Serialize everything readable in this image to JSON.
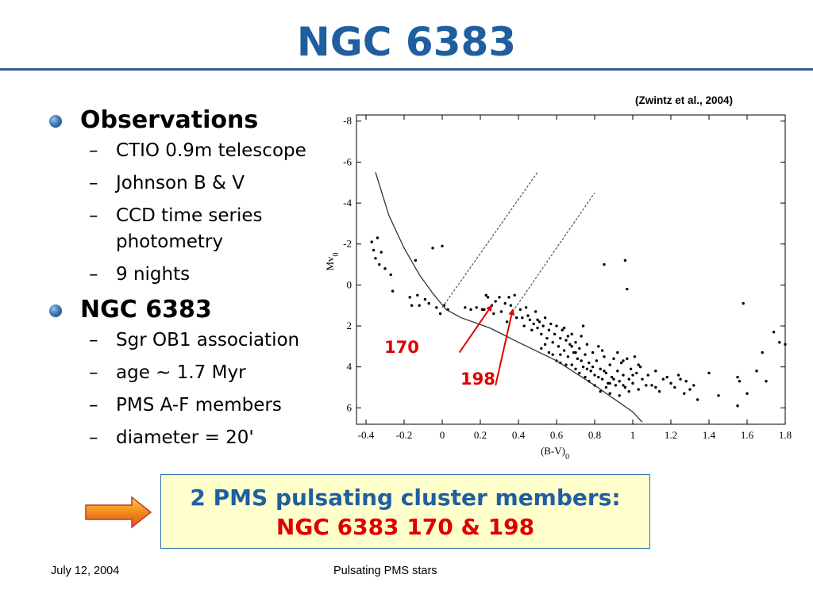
{
  "slide": {
    "title": "NGC 6383",
    "citation": "(Zwintz et al., 2004)",
    "bullets": [
      {
        "label": "Observations",
        "sub": [
          "CTIO 0.9m telescope",
          "Johnson B & V",
          "CCD time series photometry",
          "9 nights"
        ]
      },
      {
        "label": "NGC 6383",
        "sub": [
          "Sgr OB1 association",
          "age ~ 1.7 Myr",
          "PMS A-F members",
          "diameter = 20'"
        ]
      }
    ],
    "callout": {
      "line1": "2 PMS pulsating cluster members:",
      "line2": "NGC 6383 170 & 198"
    },
    "footer": {
      "date": "July 12, 2004",
      "topic": "Pulsating PMS stars"
    },
    "colors": {
      "title": "#1f5fa0",
      "highlight": "#e00000",
      "callout_bg": "#ffffcc",
      "arrow": "#f08020"
    },
    "icons": {
      "bullet": "sphere-bullet-icon",
      "arrow": "right-arrow-icon"
    }
  },
  "chart_data": {
    "type": "scatter",
    "xlabel": "(B-V)",
    "xlabel_sub": "0",
    "ylabel": "Mv",
    "ylabel_sub": "0",
    "xlim": [
      -0.45,
      1.8
    ],
    "ylim": [
      6.8,
      -8.3
    ],
    "y_inverted": true,
    "xticks": [
      -0.4,
      -0.2,
      0,
      0.2,
      0.4,
      0.6,
      0.8,
      1,
      1.2,
      1.4,
      1.6,
      1.8
    ],
    "xtick_labels": [
      "-0.4",
      "-0.2",
      "0",
      "0.2",
      "0.4",
      "0.6",
      "0.8",
      "1",
      "1.2",
      "1.4",
      "1.6",
      "1.8"
    ],
    "yticks": [
      -8,
      -6,
      -4,
      -2,
      0,
      2,
      4,
      6
    ],
    "ytick_labels": [
      "-8",
      "-6",
      "-4",
      "-2",
      "0",
      "2",
      "4",
      "6"
    ],
    "grid": false,
    "series": [
      {
        "kind": "points",
        "points": [
          [
            -0.37,
            -2.1
          ],
          [
            -0.34,
            -2.3
          ],
          [
            -0.36,
            -1.7
          ],
          [
            -0.32,
            -1.6
          ],
          [
            -0.35,
            -1.3
          ],
          [
            -0.33,
            -1.0
          ],
          [
            -0.3,
            -0.8
          ],
          [
            -0.27,
            -0.5
          ],
          [
            0,
            -1.9
          ],
          [
            -0.05,
            -1.8
          ],
          [
            -0.14,
            -1.2
          ],
          [
            -0.26,
            0.3
          ],
          [
            -0.17,
            0.6
          ],
          [
            -0.13,
            0.5
          ],
          [
            -0.09,
            0.7
          ],
          [
            -0.16,
            1.0
          ],
          [
            -0.12,
            1.0
          ],
          [
            -0.07,
            0.9
          ],
          [
            -0.03,
            1.1
          ],
          [
            0.01,
            1.0
          ],
          [
            0.03,
            1.2
          ],
          [
            -0.01,
            1.4
          ],
          [
            0.12,
            1.1
          ],
          [
            0.15,
            1.2
          ],
          [
            0.18,
            1.1
          ],
          [
            0.21,
            1.2
          ],
          [
            0.23,
            0.5
          ],
          [
            0.24,
            0.6
          ],
          [
            0.26,
            1.0
          ],
          [
            0.28,
            0.8
          ],
          [
            0.3,
            0.6
          ],
          [
            0.31,
            1.3
          ],
          [
            0.33,
            0.9
          ],
          [
            0.35,
            0.6
          ],
          [
            0.36,
            1.0
          ],
          [
            0.37,
            1.4
          ],
          [
            0.38,
            0.5
          ],
          [
            0.39,
            1.6
          ],
          [
            0.22,
            1.2
          ],
          [
            0.27,
            1.4
          ],
          [
            0.34,
            1.8
          ],
          [
            0.41,
            1.2
          ],
          [
            0.42,
            1.6
          ],
          [
            0.43,
            2.0
          ],
          [
            0.44,
            1.1
          ],
          [
            0.45,
            1.5
          ],
          [
            0.46,
            1.7
          ],
          [
            0.47,
            2.2
          ],
          [
            0.48,
            1.9
          ],
          [
            0.49,
            1.3
          ],
          [
            0.5,
            2.1
          ],
          [
            0.51,
            1.8
          ],
          [
            0.52,
            2.4
          ],
          [
            0.53,
            2.0
          ],
          [
            0.54,
            1.6
          ],
          [
            0.55,
            2.6
          ],
          [
            0.56,
            2.2
          ],
          [
            0.57,
            1.9
          ],
          [
            0.58,
            2.8
          ],
          [
            0.59,
            2.4
          ],
          [
            0.6,
            2.0
          ],
          [
            0.61,
            3.0
          ],
          [
            0.62,
            2.6
          ],
          [
            0.63,
            2.2
          ],
          [
            0.64,
            3.2
          ],
          [
            0.65,
            2.7
          ],
          [
            0.66,
            3.5
          ],
          [
            0.67,
            2.9
          ],
          [
            0.68,
            2.4
          ],
          [
            0.69,
            3.3
          ],
          [
            0.7,
            2.8
          ],
          [
            0.71,
            3.6
          ],
          [
            0.72,
            3.1
          ],
          [
            0.73,
            2.5
          ],
          [
            0.74,
            4.0
          ],
          [
            0.75,
            3.4
          ],
          [
            0.76,
            2.9
          ],
          [
            0.77,
            3.8
          ],
          [
            0.78,
            4.2
          ],
          [
            0.79,
            3.3
          ],
          [
            0.8,
            4.4
          ],
          [
            0.81,
            3.7
          ],
          [
            0.82,
            3.0
          ],
          [
            0.83,
            4.1
          ],
          [
            0.84,
            4.6
          ],
          [
            0.85,
            3.5
          ],
          [
            0.86,
            4.3
          ],
          [
            0.87,
            4.8
          ],
          [
            0.88,
            3.9
          ],
          [
            0.89,
            4.5
          ],
          [
            0.9,
            3.6
          ],
          [
            0.91,
            4.9
          ],
          [
            0.92,
            4.2
          ],
          [
            0.93,
            4.7
          ],
          [
            0.94,
            3.8
          ],
          [
            0.95,
            4.4
          ],
          [
            0.96,
            5.0
          ],
          [
            0.97,
            3.6
          ],
          [
            0.98,
            4.6
          ],
          [
            0.99,
            4.1
          ],
          [
            1.0,
            4.8
          ],
          [
            1.01,
            3.5
          ],
          [
            1.02,
            4.3
          ],
          [
            1.03,
            5.1
          ],
          [
            1.04,
            4.0
          ],
          [
            1.05,
            4.6
          ],
          [
            0.6,
            3.7
          ],
          [
            0.62,
            3.4
          ],
          [
            0.65,
            3.9
          ],
          [
            0.7,
            4.1
          ],
          [
            0.72,
            4.3
          ],
          [
            0.75,
            4.5
          ],
          [
            0.77,
            4.7
          ],
          [
            0.8,
            4.9
          ],
          [
            0.83,
            5.2
          ],
          [
            0.86,
            5.0
          ],
          [
            0.88,
            5.3
          ],
          [
            0.9,
            4.6
          ],
          [
            0.93,
            5.4
          ],
          [
            0.95,
            4.9
          ],
          [
            0.98,
            5.2
          ],
          [
            0.79,
            4.0
          ],
          [
            0.82,
            4.5
          ],
          [
            0.85,
            4.2
          ],
          [
            1.08,
            4.4
          ],
          [
            1.1,
            4.9
          ],
          [
            1.12,
            4.2
          ],
          [
            1.14,
            5.2
          ],
          [
            1.16,
            4.6
          ],
          [
            1.18,
            4.5
          ],
          [
            1.2,
            4.8
          ],
          [
            1.22,
            5.0
          ],
          [
            1.24,
            4.4
          ],
          [
            1.25,
            4.6
          ],
          [
            1.27,
            5.3
          ],
          [
            1.28,
            4.7
          ],
          [
            1.3,
            5.1
          ],
          [
            1.32,
            4.9
          ],
          [
            1.34,
            5.6
          ],
          [
            1.4,
            4.3
          ],
          [
            1.45,
            5.4
          ],
          [
            0.85,
            -1.0
          ],
          [
            0.96,
            -1.2
          ],
          [
            0.97,
            0.2
          ],
          [
            1.58,
            0.9
          ],
          [
            1.55,
            4.5
          ],
          [
            1.56,
            4.7
          ],
          [
            1.6,
            5.3
          ],
          [
            1.68,
            3.3
          ],
          [
            1.7,
            4.7
          ],
          [
            1.74,
            2.3
          ],
          [
            1.77,
            2.8
          ],
          [
            1.8,
            2.9
          ],
          [
            1.55,
            5.9
          ],
          [
            1.65,
            4.2
          ],
          [
            0.74,
            2.0
          ],
          [
            0.68,
            3.0
          ],
          [
            0.64,
            2.1
          ],
          [
            0.58,
            3.4
          ],
          [
            0.54,
            2.9
          ],
          [
            0.52,
            3.1
          ],
          [
            0.5,
            1.7
          ],
          [
            0.56,
            3.3
          ],
          [
            0.62,
            3.8
          ],
          [
            0.66,
            2.5
          ],
          [
            0.7,
            3.3
          ],
          [
            0.73,
            3.7
          ],
          [
            0.76,
            4.1
          ],
          [
            0.68,
            3.9
          ],
          [
            0.92,
            3.3
          ],
          [
            0.95,
            3.7
          ],
          [
            1.0,
            4.4
          ],
          [
            1.03,
            3.9
          ],
          [
            0.88,
            4.8
          ],
          [
            0.84,
            3.2
          ],
          [
            1.07,
            4.9
          ],
          [
            1.12,
            5.0
          ]
        ]
      },
      {
        "kind": "curve",
        "points": [
          [
            -0.35,
            -5.5
          ],
          [
            -0.28,
            -3.4
          ],
          [
            -0.2,
            -1.8
          ],
          [
            -0.12,
            -0.5
          ],
          [
            -0.05,
            0.4
          ],
          [
            0.02,
            1.2
          ],
          [
            0.1,
            1.6
          ],
          [
            0.25,
            2.1
          ],
          [
            0.4,
            2.8
          ],
          [
            0.6,
            3.7
          ],
          [
            0.8,
            4.9
          ],
          [
            1.0,
            6.2
          ],
          [
            1.05,
            6.7
          ]
        ]
      },
      {
        "kind": "dashed-line",
        "points": [
          [
            0,
            1.1
          ],
          [
            0.5,
            -5.5
          ]
        ]
      },
      {
        "kind": "dashed-line",
        "points": [
          [
            0.37,
            1.3
          ],
          [
            0.8,
            -4.5
          ]
        ]
      }
    ],
    "annotations": [
      {
        "text": "170",
        "arrow_from": [
          0.09,
          3.3
        ],
        "arrow_to": [
          0.26,
          1.0
        ]
      },
      {
        "text": "198",
        "arrow_from": [
          0.28,
          4.9
        ],
        "arrow_to": [
          0.37,
          1.2
        ]
      }
    ]
  }
}
